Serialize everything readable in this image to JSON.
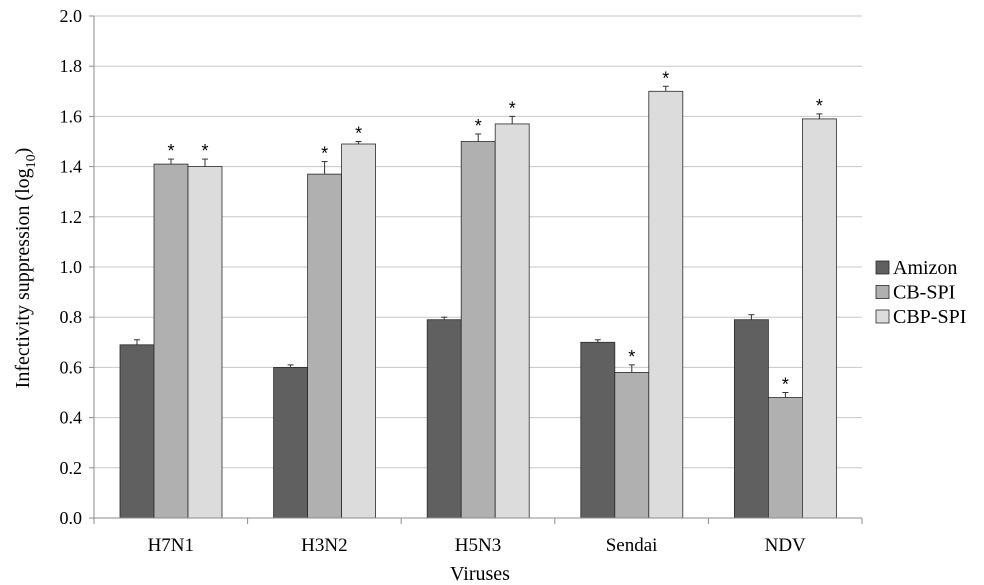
{
  "chart_data": {
    "type": "bar",
    "title": "",
    "xlabel": "Viruses",
    "ylabel": "Infectivity suppression (log",
    "ylabel_subscript": "10",
    "ylabel_suffix": ")",
    "ylim": [
      0,
      2.0
    ],
    "ytick_step": 0.2,
    "yticks": [
      "0.0",
      "0.2",
      "0.4",
      "0.6",
      "0.8",
      "1.0",
      "1.2",
      "1.4",
      "1.6",
      "1.8",
      "2.0"
    ],
    "grid": true,
    "legend_position": "right",
    "categories": [
      "H7N1",
      "H3N2",
      "H5N3",
      "Sendai",
      "NDV"
    ],
    "series": [
      {
        "name": "Amizon",
        "color": "#606060",
        "values": [
          0.69,
          0.6,
          0.79,
          0.7,
          0.79
        ],
        "errors": [
          0.02,
          0.01,
          0.01,
          0.01,
          0.02
        ],
        "significant": [
          false,
          false,
          false,
          false,
          false
        ]
      },
      {
        "name": "CB-SPI",
        "color": "#b0b0b0",
        "values": [
          1.41,
          1.37,
          1.5,
          0.58,
          0.48
        ],
        "errors": [
          0.02,
          0.05,
          0.03,
          0.03,
          0.02
        ],
        "significant": [
          true,
          true,
          true,
          true,
          true
        ]
      },
      {
        "name": "CBP-SPI",
        "color": "#dcdcdc",
        "values": [
          1.4,
          1.49,
          1.57,
          1.7,
          1.59
        ],
        "errors": [
          0.03,
          0.01,
          0.03,
          0.02,
          0.02
        ],
        "significant": [
          true,
          true,
          true,
          true,
          true
        ]
      }
    ],
    "significance_marker": "*"
  }
}
